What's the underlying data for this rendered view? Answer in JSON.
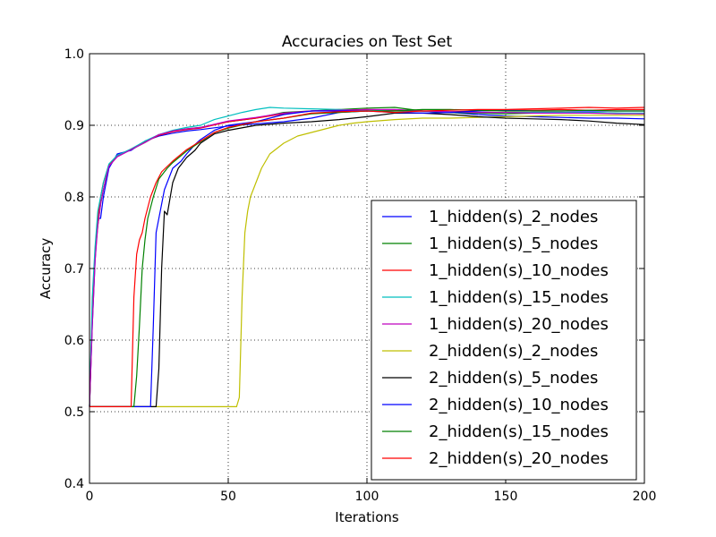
{
  "chart_data": {
    "type": "line",
    "title": "Accuracies on Test Set",
    "xlabel": "Iterations",
    "ylabel": "Accuracy",
    "xlim": [
      0,
      200
    ],
    "ylim": [
      0.4,
      1.0
    ],
    "xticks": [
      0,
      50,
      100,
      150,
      200
    ],
    "yticks": [
      0.4,
      0.5,
      0.6,
      0.7,
      0.8,
      0.9,
      1.0
    ],
    "xtick_labels": [
      "0",
      "50",
      "100",
      "150",
      "200"
    ],
    "ytick_labels": [
      "0.4",
      "0.5",
      "0.6",
      "0.7",
      "0.8",
      "0.9",
      "1.0"
    ],
    "grid": true,
    "legend_position": "lower-right",
    "series": [
      {
        "name": "1_hidden(s)_2_nodes",
        "color": "#0000ff",
        "x": [
          0,
          1,
          2,
          3,
          4,
          5,
          7,
          10,
          15,
          20,
          25,
          30,
          35,
          40,
          50,
          60,
          70,
          80,
          90,
          100,
          110,
          120,
          130,
          140,
          150,
          160,
          170,
          180,
          190,
          200
        ],
        "y": [
          0.507,
          0.62,
          0.71,
          0.77,
          0.77,
          0.8,
          0.84,
          0.86,
          0.865,
          0.878,
          0.885,
          0.889,
          0.892,
          0.894,
          0.899,
          0.902,
          0.905,
          0.91,
          0.918,
          0.92,
          0.921,
          0.92,
          0.918,
          0.915,
          0.913,
          0.912,
          0.911,
          0.91,
          0.91,
          0.909
        ]
      },
      {
        "name": "1_hidden(s)_5_nodes",
        "color": "#008000",
        "x": [
          0,
          1,
          2,
          3,
          4,
          5,
          7,
          10,
          15,
          20,
          25,
          30,
          35,
          40,
          50,
          60,
          70,
          80,
          90,
          100,
          110,
          120,
          130,
          140,
          150,
          160,
          170,
          180,
          190,
          200
        ],
        "y": [
          0.507,
          0.64,
          0.72,
          0.76,
          0.79,
          0.81,
          0.845,
          0.858,
          0.866,
          0.876,
          0.887,
          0.892,
          0.895,
          0.897,
          0.905,
          0.91,
          0.918,
          0.92,
          0.922,
          0.924,
          0.925,
          0.92,
          0.918,
          0.917,
          0.916,
          0.917,
          0.918,
          0.918,
          0.917,
          0.916
        ]
      },
      {
        "name": "1_hidden(s)_10_nodes",
        "color": "#ff0000",
        "x": [
          0,
          1,
          2,
          3,
          4,
          5,
          7,
          10,
          15,
          20,
          25,
          30,
          35,
          40,
          50,
          60,
          70,
          80,
          90,
          100,
          110,
          120,
          130,
          140,
          150,
          160,
          170,
          180,
          190,
          200
        ],
        "y": [
          0.507,
          0.63,
          0.72,
          0.77,
          0.8,
          0.82,
          0.845,
          0.857,
          0.867,
          0.877,
          0.886,
          0.891,
          0.894,
          0.896,
          0.905,
          0.91,
          0.916,
          0.92,
          0.921,
          0.922,
          0.921,
          0.92,
          0.919,
          0.92,
          0.921,
          0.921,
          0.922,
          0.921,
          0.922,
          0.922
        ]
      },
      {
        "name": "1_hidden(s)_15_nodes",
        "color": "#00bfbf",
        "x": [
          0,
          1,
          2,
          3,
          4,
          5,
          7,
          10,
          15,
          20,
          25,
          30,
          35,
          40,
          45,
          50,
          55,
          60,
          65,
          70,
          80,
          90,
          100,
          110,
          120,
          130,
          140,
          150,
          160,
          170,
          180,
          190,
          200
        ],
        "y": [
          0.507,
          0.66,
          0.73,
          0.78,
          0.8,
          0.82,
          0.846,
          0.858,
          0.867,
          0.878,
          0.887,
          0.893,
          0.897,
          0.9,
          0.908,
          0.913,
          0.918,
          0.922,
          0.925,
          0.924,
          0.923,
          0.922,
          0.921,
          0.92,
          0.92,
          0.919,
          0.918,
          0.918,
          0.918,
          0.918,
          0.918,
          0.917,
          0.917
        ]
      },
      {
        "name": "1_hidden(s)_20_nodes",
        "color": "#bf00bf",
        "x": [
          0,
          1,
          2,
          3,
          4,
          5,
          7,
          10,
          15,
          20,
          25,
          30,
          35,
          40,
          50,
          60,
          70,
          80,
          90,
          100,
          110,
          120,
          130,
          140,
          150,
          160,
          170,
          180,
          190,
          200
        ],
        "y": [
          0.507,
          0.62,
          0.71,
          0.76,
          0.79,
          0.81,
          0.843,
          0.856,
          0.866,
          0.876,
          0.887,
          0.892,
          0.895,
          0.897,
          0.906,
          0.911,
          0.917,
          0.92,
          0.921,
          0.922,
          0.922,
          0.92,
          0.919,
          0.918,
          0.918,
          0.917,
          0.917,
          0.917,
          0.916,
          0.916
        ]
      },
      {
        "name": "2_hidden(s)_2_nodes",
        "color": "#bfbf00",
        "x": [
          0,
          10,
          20,
          30,
          40,
          50,
          53,
          54,
          55,
          56,
          57,
          58,
          60,
          62,
          65,
          70,
          75,
          80,
          85,
          90,
          95,
          100,
          110,
          120,
          130,
          140,
          150,
          160,
          170,
          180,
          190,
          200
        ],
        "y": [
          0.507,
          0.507,
          0.507,
          0.507,
          0.507,
          0.507,
          0.507,
          0.52,
          0.66,
          0.75,
          0.78,
          0.8,
          0.82,
          0.84,
          0.86,
          0.875,
          0.885,
          0.89,
          0.895,
          0.9,
          0.903,
          0.905,
          0.908,
          0.91,
          0.91,
          0.911,
          0.912,
          0.913,
          0.914,
          0.914,
          0.914,
          0.914
        ]
      },
      {
        "name": "2_hidden(s)_5_nodes",
        "color": "#000000",
        "x": [
          0,
          10,
          20,
          24,
          25,
          26,
          27,
          28,
          30,
          32,
          35,
          38,
          40,
          45,
          50,
          60,
          70,
          80,
          90,
          100,
          110,
          120,
          130,
          140,
          150,
          160,
          170,
          180,
          190,
          200
        ],
        "y": [
          0.507,
          0.507,
          0.507,
          0.507,
          0.56,
          0.7,
          0.78,
          0.775,
          0.82,
          0.84,
          0.855,
          0.865,
          0.875,
          0.888,
          0.893,
          0.9,
          0.903,
          0.905,
          0.908,
          0.912,
          0.917,
          0.917,
          0.915,
          0.912,
          0.91,
          0.909,
          0.908,
          0.906,
          0.903,
          0.901
        ]
      },
      {
        "name": "2_hidden(s)_10_nodes",
        "color": "#0000ff",
        "x": [
          0,
          10,
          20,
          22,
          23,
          24,
          25,
          27,
          30,
          33,
          35,
          38,
          40,
          45,
          50,
          60,
          70,
          80,
          90,
          100,
          110,
          120,
          130,
          140,
          150,
          160,
          170,
          180,
          190,
          200
        ],
        "y": [
          0.507,
          0.507,
          0.507,
          0.507,
          0.62,
          0.75,
          0.77,
          0.81,
          0.84,
          0.85,
          0.86,
          0.873,
          0.88,
          0.893,
          0.9,
          0.905,
          0.915,
          0.92,
          0.92,
          0.92,
          0.918,
          0.917,
          0.918,
          0.92,
          0.921,
          0.92,
          0.92,
          0.92,
          0.92,
          0.92
        ]
      },
      {
        "name": "2_hidden(s)_15_nodes",
        "color": "#008000",
        "x": [
          0,
          10,
          16,
          17,
          18,
          19,
          20,
          21,
          23,
          25,
          28,
          30,
          35,
          40,
          45,
          50,
          60,
          70,
          80,
          90,
          100,
          110,
          120,
          130,
          140,
          150,
          160,
          170,
          180,
          190,
          200
        ],
        "y": [
          0.507,
          0.507,
          0.507,
          0.55,
          0.62,
          0.7,
          0.74,
          0.77,
          0.8,
          0.825,
          0.84,
          0.848,
          0.864,
          0.877,
          0.89,
          0.896,
          0.905,
          0.91,
          0.916,
          0.918,
          0.92,
          0.92,
          0.922,
          0.922,
          0.921,
          0.92,
          0.92,
          0.92,
          0.921,
          0.92,
          0.92
        ]
      },
      {
        "name": "2_hidden(s)_20_nodes",
        "color": "#ff0000",
        "x": [
          0,
          10,
          15,
          16,
          17,
          18,
          19,
          20,
          22,
          24,
          26,
          30,
          35,
          40,
          45,
          50,
          60,
          70,
          80,
          90,
          100,
          110,
          120,
          130,
          140,
          150,
          160,
          170,
          180,
          190,
          200
        ],
        "y": [
          0.507,
          0.507,
          0.507,
          0.66,
          0.72,
          0.74,
          0.75,
          0.77,
          0.8,
          0.82,
          0.835,
          0.85,
          0.866,
          0.878,
          0.89,
          0.897,
          0.905,
          0.91,
          0.917,
          0.919,
          0.92,
          0.918,
          0.92,
          0.921,
          0.922,
          0.922,
          0.923,
          0.924,
          0.925,
          0.924,
          0.925
        ]
      }
    ]
  }
}
